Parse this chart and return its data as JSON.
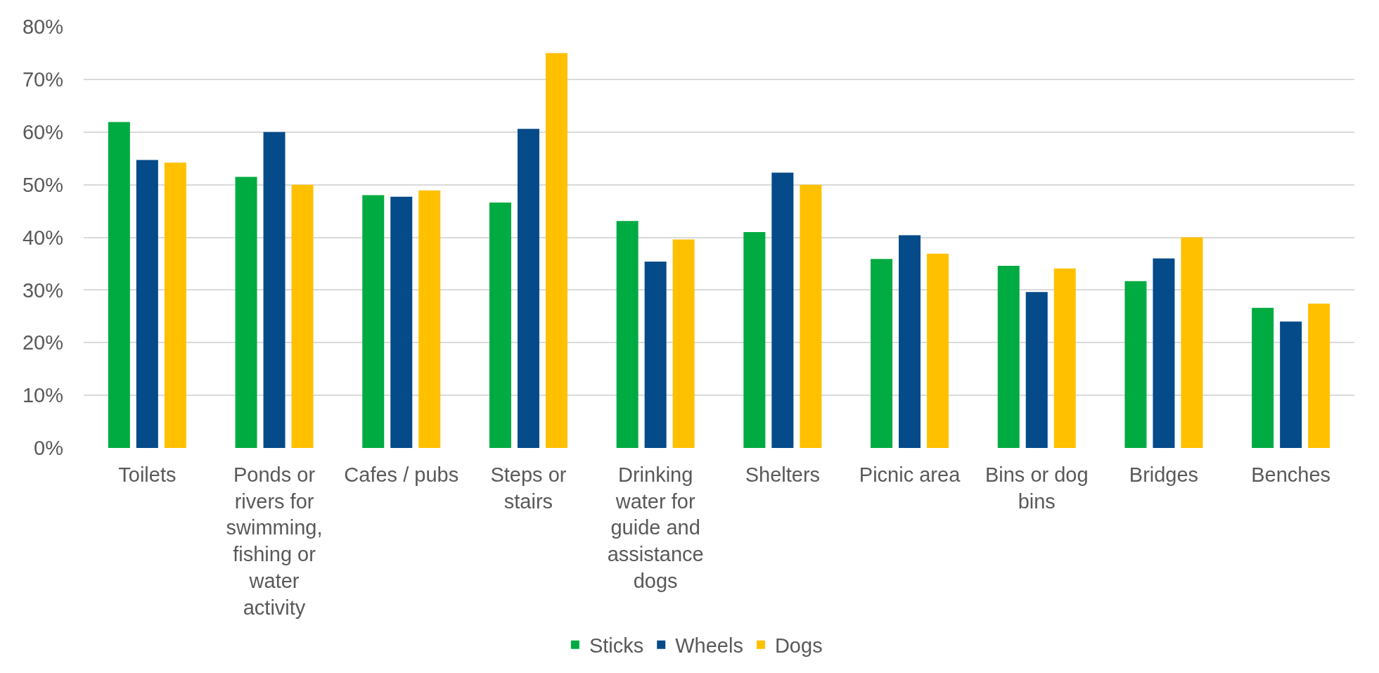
{
  "chart_data": {
    "type": "bar",
    "categories": [
      "Toilets",
      "Ponds or rivers for swimming, fishing or water activity",
      "Cafes / pubs",
      "Steps or stairs",
      "Drinking water for guide and assistance dogs",
      "Shelters",
      "Picnic area",
      "Bins or dog bins",
      "Bridges",
      "Benches"
    ],
    "series": [
      {
        "name": "Sticks",
        "color": "#00ab41",
        "values": [
          61.9,
          51.5,
          48.0,
          46.6,
          43.1,
          41.0,
          35.9,
          34.6,
          31.7,
          26.6
        ]
      },
      {
        "name": "Wheels",
        "color": "#054a89",
        "values": [
          54.7,
          60.0,
          47.7,
          60.6,
          35.4,
          52.3,
          40.4,
          29.6,
          36.0,
          24.0
        ]
      },
      {
        "name": "Dogs",
        "color": "#ffc000",
        "values": [
          54.2,
          50.0,
          48.9,
          75.0,
          39.6,
          50.0,
          36.9,
          34.1,
          40.0,
          27.4
        ]
      }
    ],
    "ylim": [
      0,
      80
    ],
    "yticks": [
      {
        "value": 0,
        "label": "0%"
      },
      {
        "value": 10,
        "label": "10%"
      },
      {
        "value": 20,
        "label": "20%"
      },
      {
        "value": 30,
        "label": "30%"
      },
      {
        "value": 40,
        "label": "40%"
      },
      {
        "value": 50,
        "label": "50%"
      },
      {
        "value": 60,
        "label": "60%"
      },
      {
        "value": 70,
        "label": "70%"
      },
      {
        "value": 80,
        "label": "80%"
      }
    ],
    "grid": "y",
    "legend": "bottom"
  }
}
